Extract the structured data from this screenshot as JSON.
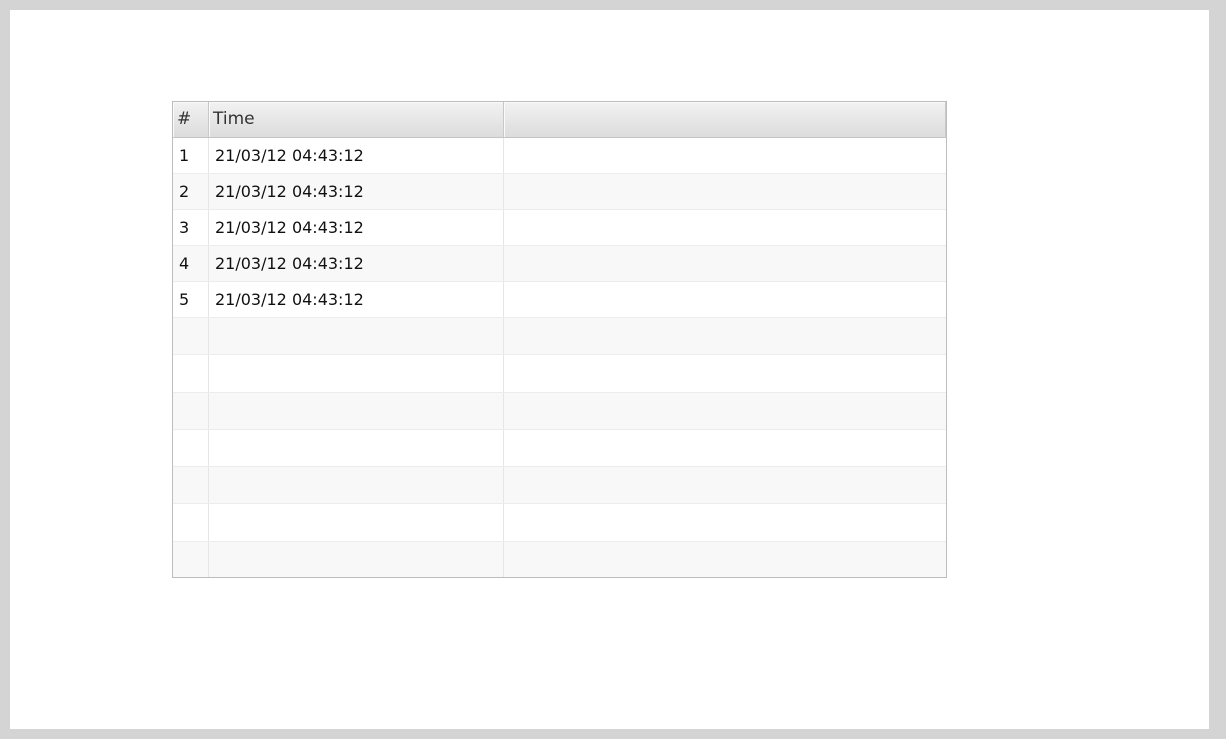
{
  "table": {
    "columns": [
      "#",
      "Time",
      ""
    ],
    "rows": [
      {
        "num": "1",
        "time": "21/03/12 04:43:12"
      },
      {
        "num": "2",
        "time": "21/03/12 04:43:12"
      },
      {
        "num": "3",
        "time": "21/03/12 04:43:12"
      },
      {
        "num": "4",
        "time": "21/03/12 04:43:12"
      },
      {
        "num": "5",
        "time": "21/03/12 04:43:12"
      }
    ]
  }
}
